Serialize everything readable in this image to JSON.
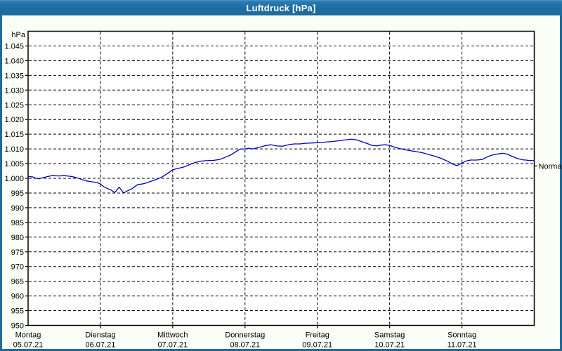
{
  "window": {
    "title": "Luftdruck [hPa]"
  },
  "colors": {
    "titlebar_bg": "#1d6b9e",
    "window_border": "#1d6b9e",
    "client_bg": "#fbfef6",
    "plot_bg": "#ffffff",
    "grid": "#000000",
    "axis": "#000000",
    "text": "#000000",
    "title_text": "#ffffff",
    "line": "#0000c0"
  },
  "chart_data": {
    "type": "line",
    "title": "Luftdruck [hPa]",
    "y_unit_label": "hPa",
    "y_min": 950,
    "y_max": 1050,
    "y_tick_step": 5,
    "y_tick_labels": [
      "950",
      "955",
      "960",
      "965",
      "970",
      "975",
      "980",
      "985",
      "990",
      "995",
      "1.000",
      "1.005",
      "1.010",
      "1.015",
      "1.020",
      "1.025",
      "1.030",
      "1.035",
      "1.040",
      "1.045"
    ],
    "grid": "dashed",
    "x_days": [
      {
        "weekday": "Montag",
        "date": "05.07.21"
      },
      {
        "weekday": "Dienstag",
        "date": "06.07.21"
      },
      {
        "weekday": "Mittwoch",
        "date": "07.07.21"
      },
      {
        "weekday": "Donnerstag",
        "date": "08.07.21"
      },
      {
        "weekday": "Freitag",
        "date": "09.07.21"
      },
      {
        "weekday": "Samstag",
        "date": "10.07.21"
      },
      {
        "weekday": "Sonntag",
        "date": "11.07.21"
      }
    ],
    "normal_label": "Normal",
    "normal_value": 1004.2,
    "series": [
      {
        "name": "Luftdruck",
        "points": [
          [
            0.0,
            1000.6
          ],
          [
            0.06,
            1000.5
          ],
          [
            0.1,
            1000.1
          ],
          [
            0.15,
            999.8
          ],
          [
            0.2,
            1000.2
          ],
          [
            0.27,
            1000.6
          ],
          [
            0.33,
            1000.9
          ],
          [
            0.43,
            1000.8
          ],
          [
            0.5,
            1000.9
          ],
          [
            0.58,
            1000.7
          ],
          [
            0.66,
            1000.3
          ],
          [
            0.74,
            999.6
          ],
          [
            0.81,
            999.1
          ],
          [
            0.88,
            998.8
          ],
          [
            0.95,
            998.6
          ],
          [
            1.0,
            998.1
          ],
          [
            1.05,
            997.1
          ],
          [
            1.1,
            996.5
          ],
          [
            1.14,
            996.1
          ],
          [
            1.18,
            995.5
          ],
          [
            1.2,
            995.2
          ],
          [
            1.26,
            997.0
          ],
          [
            1.32,
            995.0
          ],
          [
            1.38,
            995.8
          ],
          [
            1.44,
            996.5
          ],
          [
            1.51,
            997.8
          ],
          [
            1.61,
            998.2
          ],
          [
            1.7,
            999.0
          ],
          [
            1.78,
            999.7
          ],
          [
            1.85,
            1000.4
          ],
          [
            1.92,
            1001.5
          ],
          [
            2.0,
            1002.9
          ],
          [
            2.08,
            1003.4
          ],
          [
            2.16,
            1003.9
          ],
          [
            2.22,
            1004.5
          ],
          [
            2.3,
            1005.3
          ],
          [
            2.38,
            1005.8
          ],
          [
            2.46,
            1006.0
          ],
          [
            2.57,
            1006.1
          ],
          [
            2.65,
            1006.4
          ],
          [
            2.73,
            1007.2
          ],
          [
            2.8,
            1007.9
          ],
          [
            2.87,
            1009.0
          ],
          [
            2.93,
            1009.9
          ],
          [
            3.0,
            1010.0
          ],
          [
            3.05,
            1010.2
          ],
          [
            3.11,
            1010.0
          ],
          [
            3.19,
            1010.5
          ],
          [
            3.28,
            1011.1
          ],
          [
            3.36,
            1011.4
          ],
          [
            3.44,
            1011.0
          ],
          [
            3.52,
            1010.9
          ],
          [
            3.6,
            1011.4
          ],
          [
            3.68,
            1011.7
          ],
          [
            3.76,
            1011.7
          ],
          [
            3.84,
            1011.9
          ],
          [
            3.92,
            1012.0
          ],
          [
            4.0,
            1012.1
          ],
          [
            4.1,
            1012.3
          ],
          [
            4.2,
            1012.5
          ],
          [
            4.31,
            1012.8
          ],
          [
            4.4,
            1013.1
          ],
          [
            4.47,
            1013.3
          ],
          [
            4.54,
            1013.1
          ],
          [
            4.61,
            1012.5
          ],
          [
            4.68,
            1011.9
          ],
          [
            4.76,
            1011.2
          ],
          [
            4.82,
            1011.0
          ],
          [
            4.88,
            1011.3
          ],
          [
            4.94,
            1011.4
          ],
          [
            5.0,
            1011.2
          ],
          [
            5.08,
            1010.5
          ],
          [
            5.16,
            1010.0
          ],
          [
            5.26,
            1009.5
          ],
          [
            5.36,
            1009.1
          ],
          [
            5.45,
            1008.7
          ],
          [
            5.54,
            1008.1
          ],
          [
            5.63,
            1007.5
          ],
          [
            5.72,
            1006.7
          ],
          [
            5.8,
            1005.8
          ],
          [
            5.87,
            1004.9
          ],
          [
            5.93,
            1004.3
          ],
          [
            5.97,
            1004.8
          ],
          [
            6.0,
            1005.2
          ],
          [
            6.06,
            1005.9
          ],
          [
            6.12,
            1006.2
          ],
          [
            6.2,
            1006.2
          ],
          [
            6.28,
            1006.4
          ],
          [
            6.35,
            1007.3
          ],
          [
            6.42,
            1007.9
          ],
          [
            6.5,
            1008.3
          ],
          [
            6.57,
            1008.5
          ],
          [
            6.63,
            1008.2
          ],
          [
            6.7,
            1007.4
          ],
          [
            6.77,
            1006.7
          ],
          [
            6.84,
            1006.3
          ],
          [
            6.92,
            1006.1
          ],
          [
            7.0,
            1006.0
          ]
        ]
      }
    ]
  }
}
